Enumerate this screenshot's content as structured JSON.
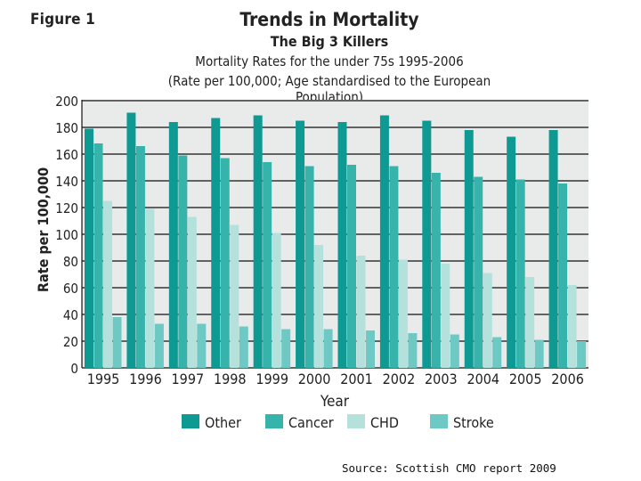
{
  "figure_label": "Figure 1",
  "source": "Source: Scottish CMO report 2009",
  "colors": {
    "other": "#0e9a92",
    "cancer": "#36b3ab",
    "chd": "#b5e1dd",
    "stroke": "#6ec8c4",
    "grid": "#111111"
  },
  "chart_data": {
    "type": "bar",
    "title": "Trends in Mortality",
    "subtitle": "The Big 3 Killers",
    "subtitle2": "Mortality Rates for the under 75s 1995-2006",
    "subtitle3": "(Rate per 100,000; Age standardised to the European Population)",
    "xlabel": "Year",
    "ylabel": "Rate per 100,000",
    "ylim": [
      0,
      200
    ],
    "yticks": [
      0,
      20,
      40,
      60,
      80,
      100,
      120,
      140,
      160,
      180,
      200
    ],
    "grid": true,
    "legend_position": "bottom",
    "categories": [
      "1995",
      "1996",
      "1997",
      "1998",
      "1999",
      "2000",
      "2001",
      "2002",
      "2003",
      "2004",
      "2005",
      "2006"
    ],
    "series": [
      {
        "name": "Other",
        "values": [
          179,
          191,
          184,
          187,
          189,
          185,
          184,
          189,
          185,
          178,
          173,
          178
        ]
      },
      {
        "name": "Cancer",
        "values": [
          168,
          166,
          159,
          157,
          154,
          151,
          152,
          151,
          146,
          143,
          141,
          138
        ]
      },
      {
        "name": "CHD",
        "values": [
          125,
          119,
          113,
          107,
          101,
          92,
          84,
          81,
          78,
          71,
          68,
          62
        ]
      },
      {
        "name": "Stroke",
        "values": [
          38,
          33,
          33,
          31,
          29,
          29,
          28,
          26,
          25,
          23,
          21,
          20
        ]
      }
    ]
  }
}
